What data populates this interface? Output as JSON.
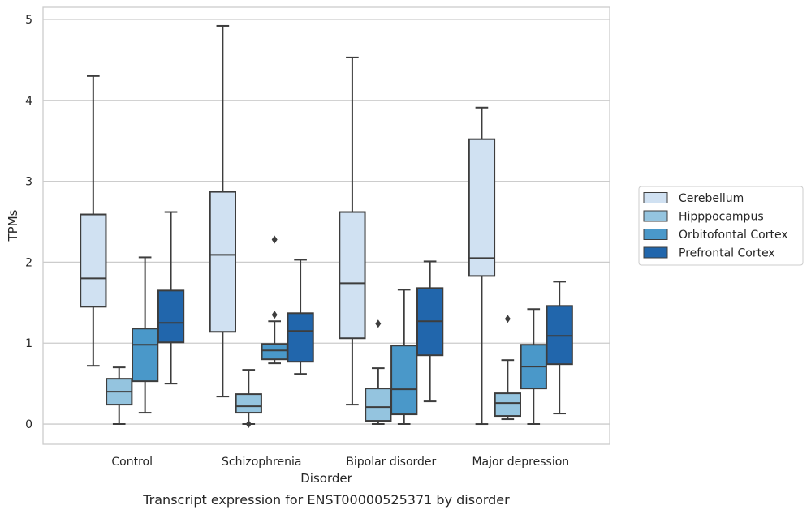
{
  "caption": "Transcript expression for ENST00000525371 by disorder",
  "chart_data": {
    "type": "boxplot",
    "xlabel": "Disorder",
    "ylabel": "TPMs",
    "ylim": [
      -0.25,
      5.15
    ],
    "yticks": [
      0,
      1,
      2,
      3,
      4,
      5
    ],
    "ytick_labels": [
      "0",
      "1",
      "2",
      "3",
      "4",
      "5"
    ],
    "grid": "y",
    "legend_placement": "right",
    "categories": [
      "Control",
      "Schizophrenia",
      "Bipolar disorder",
      "Major depression"
    ],
    "series": [
      {
        "name": "Cerebellum",
        "color": "#d0e1f2",
        "boxes": [
          {
            "whislo": 0.72,
            "q1": 1.45,
            "med": 1.8,
            "q3": 2.59,
            "whishi": 4.3,
            "fliers": []
          },
          {
            "whislo": 0.34,
            "q1": 1.14,
            "med": 2.09,
            "q3": 2.87,
            "whishi": 4.92,
            "fliers": []
          },
          {
            "whislo": 0.24,
            "q1": 1.06,
            "med": 1.74,
            "q3": 2.62,
            "whishi": 4.53,
            "fliers": []
          },
          {
            "whislo": 0.0,
            "q1": 1.83,
            "med": 2.05,
            "q3": 3.52,
            "whishi": 3.91,
            "fliers": []
          }
        ]
      },
      {
        "name": "Hipppocampus",
        "color": "#94c4df",
        "boxes": [
          {
            "whislo": 0.0,
            "q1": 0.24,
            "med": 0.4,
            "q3": 0.56,
            "whishi": 0.7,
            "fliers": []
          },
          {
            "whislo": 0.0,
            "q1": 0.14,
            "med": 0.22,
            "q3": 0.37,
            "whishi": 0.67,
            "fliers": [
              0.0
            ]
          },
          {
            "whislo": 0.0,
            "q1": 0.04,
            "med": 0.21,
            "q3": 0.44,
            "whishi": 0.69,
            "fliers": [
              1.24
            ]
          },
          {
            "whislo": 0.06,
            "q1": 0.1,
            "med": 0.26,
            "q3": 0.38,
            "whishi": 0.79,
            "fliers": [
              1.3
            ]
          }
        ]
      },
      {
        "name": "Orbitofontal Cortex",
        "color": "#4a98c9",
        "boxes": [
          {
            "whislo": 0.14,
            "q1": 0.53,
            "med": 0.98,
            "q3": 1.18,
            "whishi": 2.06,
            "fliers": []
          },
          {
            "whislo": 0.75,
            "q1": 0.8,
            "med": 0.91,
            "q3": 0.99,
            "whishi": 1.27,
            "fliers": [
              1.35,
              2.28
            ]
          },
          {
            "whislo": 0.0,
            "q1": 0.12,
            "med": 0.43,
            "q3": 0.97,
            "whishi": 1.66,
            "fliers": []
          },
          {
            "whislo": 0.0,
            "q1": 0.44,
            "med": 0.71,
            "q3": 0.98,
            "whishi": 1.42,
            "fliers": []
          }
        ]
      },
      {
        "name": "Prefrontal Cortex",
        "color": "#2166ac",
        "boxes": [
          {
            "whislo": 0.5,
            "q1": 1.01,
            "med": 1.25,
            "q3": 1.65,
            "whishi": 2.62,
            "fliers": []
          },
          {
            "whislo": 0.62,
            "q1": 0.77,
            "med": 1.15,
            "q3": 1.37,
            "whishi": 2.03,
            "fliers": []
          },
          {
            "whislo": 0.28,
            "q1": 0.85,
            "med": 1.27,
            "q3": 1.68,
            "whishi": 2.01,
            "fliers": []
          },
          {
            "whislo": 0.13,
            "q1": 0.74,
            "med": 1.09,
            "q3": 1.46,
            "whishi": 1.76,
            "fliers": []
          }
        ]
      }
    ]
  }
}
